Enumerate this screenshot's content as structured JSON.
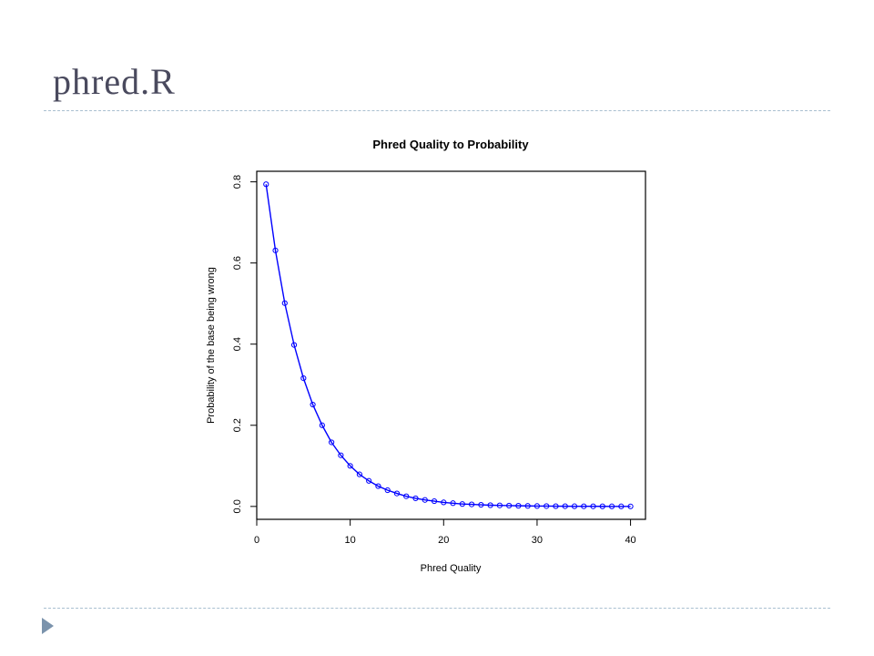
{
  "slide": {
    "title": "phred.R"
  },
  "chart_data": {
    "type": "line",
    "title": "Phred Quality to Probability",
    "xlabel": "Phred Quality",
    "ylabel": "Probability of the base being wrong",
    "xlim": [
      0,
      41.6
    ],
    "ylim": [
      -0.0318,
      0.826
    ],
    "xticks": [
      0,
      10,
      20,
      30,
      40
    ],
    "yticks": [
      0.0,
      0.2,
      0.4,
      0.6,
      0.8
    ],
    "xtick_labels": [
      "0",
      "10",
      "20",
      "30",
      "40"
    ],
    "ytick_labels": [
      "0.0",
      "0.2",
      "0.4",
      "0.6",
      "0.8"
    ],
    "series": [
      {
        "color": "#0000ff",
        "marker": "circle",
        "x": [
          1,
          2,
          3,
          4,
          5,
          6,
          7,
          8,
          9,
          10,
          11,
          12,
          13,
          14,
          15,
          16,
          17,
          18,
          19,
          20,
          21,
          22,
          23,
          24,
          25,
          26,
          27,
          28,
          29,
          30,
          31,
          32,
          33,
          34,
          35,
          36,
          37,
          38,
          39,
          40
        ],
        "y": [
          0.794,
          0.631,
          0.501,
          0.398,
          0.316,
          0.251,
          0.2,
          0.158,
          0.126,
          0.1,
          0.079,
          0.063,
          0.05,
          0.04,
          0.032,
          0.025,
          0.02,
          0.016,
          0.013,
          0.01,
          0.008,
          0.006,
          0.005,
          0.004,
          0.003,
          0.0025,
          0.002,
          0.0016,
          0.0013,
          0.001,
          0.0008,
          0.0006,
          0.0005,
          0.0004,
          0.0003,
          0.00025,
          0.0002,
          0.00016,
          0.00013,
          0.0001
        ]
      }
    ],
    "grid": false,
    "legend": "none"
  }
}
